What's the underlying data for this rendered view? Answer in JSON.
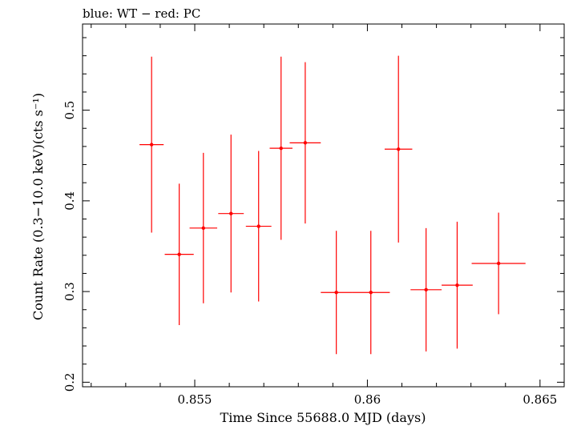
{
  "chart_data": {
    "type": "scatter",
    "title": "blue: WT − red: PC",
    "xlabel": "Time Since 55688.0 MJD (days)",
    "ylabel": "Count Rate (0.3−10.0 keV)(cts s⁻¹)",
    "xlim": [
      0.85175,
      0.8657
    ],
    "ylim": [
      0.195,
      0.595
    ],
    "x_ticks": [
      0.855,
      0.86,
      0.865
    ],
    "x_tick_labels": [
      "0.855",
      "0.86",
      "0.865"
    ],
    "y_ticks": [
      0.2,
      0.3,
      0.4,
      0.5
    ],
    "y_tick_labels": [
      "0.2",
      "0.3",
      "0.4",
      "0.5"
    ],
    "grid": false,
    "series": [
      {
        "name": "PC",
        "color": "#ff0000",
        "points": [
          {
            "x": 0.85375,
            "xerr": 0.00035,
            "y": 0.462,
            "yerr": 0.097
          },
          {
            "x": 0.85455,
            "xerr": 0.00042,
            "y": 0.341,
            "yerr": 0.078
          },
          {
            "x": 0.85525,
            "xerr": 0.0004,
            "y": 0.37,
            "yerr": 0.083
          },
          {
            "x": 0.85605,
            "xerr": 0.00037,
            "y": 0.386,
            "yerr": 0.087
          },
          {
            "x": 0.85685,
            "xerr": 0.00037,
            "y": 0.372,
            "yerr": 0.083
          },
          {
            "x": 0.8575,
            "xerr": 0.00033,
            "y": 0.458,
            "yerr": 0.101
          },
          {
            "x": 0.8582,
            "xerr": 0.00045,
            "y": 0.464,
            "yerr": 0.089
          },
          {
            "x": 0.8591,
            "xerr": 0.00045,
            "y": 0.299,
            "yerr": 0.068
          },
          {
            "x": 0.8601,
            "xerr": 0.00055,
            "y": 0.299,
            "yerr": 0.068
          },
          {
            "x": 0.8609,
            "xerr": 0.0004,
            "y": 0.457,
            "yerr": 0.103
          },
          {
            "x": 0.8617,
            "xerr": 0.00045,
            "y": 0.302,
            "yerr": 0.068
          },
          {
            "x": 0.8626,
            "xerr": 0.00045,
            "y": 0.307,
            "yerr": 0.07
          },
          {
            "x": 0.8638,
            "xerr": 0.00078,
            "y": 0.331,
            "yerr": 0.056
          }
        ]
      }
    ]
  }
}
